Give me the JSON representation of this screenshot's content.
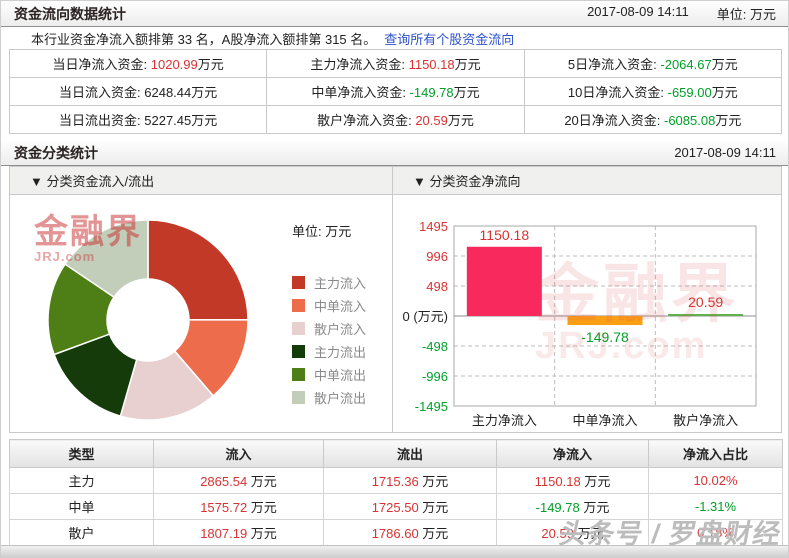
{
  "section1": {
    "title": "资金流向数据统计",
    "datetime": "2017-08-09 14:11",
    "unit_label": "单位: 万元",
    "rank_text": "本行业资金净流入额排第 33 名，A股净流入额排第 315 名。",
    "link_text": "查询所有个股资金流向",
    "table": {
      "rows": [
        [
          {
            "label": "当日净流入资金: ",
            "value": "1020.99",
            "suffix": "万元",
            "color": "red"
          },
          {
            "label": "主力净流入资金: ",
            "value": "1150.18",
            "suffix": "万元",
            "color": "red"
          },
          {
            "label": "5日净流入资金: ",
            "value": "-2064.67",
            "suffix": "万元",
            "color": "green"
          }
        ],
        [
          {
            "label": "当日流入资金: ",
            "value": "6248.44",
            "suffix": "万元",
            "color": "black"
          },
          {
            "label": "中单净流入资金: ",
            "value": "-149.78",
            "suffix": "万元",
            "color": "green"
          },
          {
            "label": "10日净流入资金: ",
            "value": "-659.00",
            "suffix": "万元",
            "color": "green"
          }
        ],
        [
          {
            "label": "当日流出资金: ",
            "value": "5227.45",
            "suffix": "万元",
            "color": "black"
          },
          {
            "label": "散户净流入资金: ",
            "value": "20.59",
            "suffix": "万元",
            "color": "red"
          },
          {
            "label": "20日净流入资金: ",
            "value": "-6085.08",
            "suffix": "万元",
            "color": "green"
          }
        ]
      ]
    }
  },
  "section2": {
    "title": "资金分类统计",
    "datetime": "2017-08-09 14:11",
    "left_panel": {
      "header": "▼ 分类资金流入/流出",
      "unit_label": "单位: 万元",
      "watermark": {
        "main": "金融界",
        "sub": "JRJ.com"
      }
    },
    "right_panel": {
      "header": "▼ 分类资金净流向",
      "watermark": {
        "main": "金融界",
        "sub": "JRJ.com"
      }
    }
  },
  "chart_data": [
    {
      "type": "pie",
      "title": "分类资金流入/流出",
      "unit": "万元",
      "donut": true,
      "legend_position": "right",
      "slices": [
        {
          "name": "主力流入",
          "value": 2865.54,
          "color": "#c23928"
        },
        {
          "name": "中单流入",
          "value": 1575.72,
          "color": "#ed6c4c"
        },
        {
          "name": "散户流入",
          "value": 1807.19,
          "color": "#e8d0d1"
        },
        {
          "name": "主力流出",
          "value": 1715.36,
          "color": "#143b09"
        },
        {
          "name": "中单流出",
          "value": 1725.5,
          "color": "#4d7f16"
        },
        {
          "name": "散户流出",
          "value": 1786.6,
          "color": "#c2cdba"
        }
      ]
    },
    {
      "type": "bar",
      "title": "分类资金净流向",
      "categories": [
        "主力净流入",
        "中单净流入",
        "散户净流入"
      ],
      "values": [
        1150.18,
        -149.78,
        20.59
      ],
      "value_labels": [
        "1150.18",
        "-149.78",
        "20.59"
      ],
      "bar_colors": [
        "#f8295d",
        "#fba015",
        "#61b24e"
      ],
      "ylabel": "万元",
      "ylim": [
        -1495,
        1495
      ],
      "yticks": [
        1495,
        996,
        498,
        0,
        -498,
        -996,
        -1495
      ],
      "zero_tick_label": "0 (万元)",
      "grid": "dashed"
    }
  ],
  "bottom_table": {
    "headers": [
      "类型",
      "流入",
      "流出",
      "净流入",
      "净流入占比"
    ],
    "unit_suffix": " 万元",
    "rows": [
      {
        "type": "主力",
        "inflow": "2865.54",
        "inflow_color": "red",
        "outflow": "1715.36",
        "outflow_color": "red",
        "net": "1150.18",
        "net_color": "red",
        "ratio": "10.02%",
        "ratio_color": "red"
      },
      {
        "type": "中单",
        "inflow": "1575.72",
        "inflow_color": "red",
        "outflow": "1725.50",
        "outflow_color": "red",
        "net": "-149.78",
        "net_color": "green",
        "ratio": "-1.31%",
        "ratio_color": "green"
      },
      {
        "type": "散户",
        "inflow": "1807.19",
        "inflow_color": "red",
        "outflow": "1786.60",
        "outflow_color": "red",
        "net": "20.59",
        "net_color": "red",
        "ratio": "0.18%",
        "ratio_color": "red"
      }
    ]
  },
  "page_watermark": "头条号 / 罗盘财经",
  "colors": {
    "red": "#d83333",
    "green": "#00a028",
    "link": "#2d52cc",
    "grid": "#bdbdbd",
    "axis": "#a8a8a8",
    "zero_line": "#8f8f8f"
  }
}
